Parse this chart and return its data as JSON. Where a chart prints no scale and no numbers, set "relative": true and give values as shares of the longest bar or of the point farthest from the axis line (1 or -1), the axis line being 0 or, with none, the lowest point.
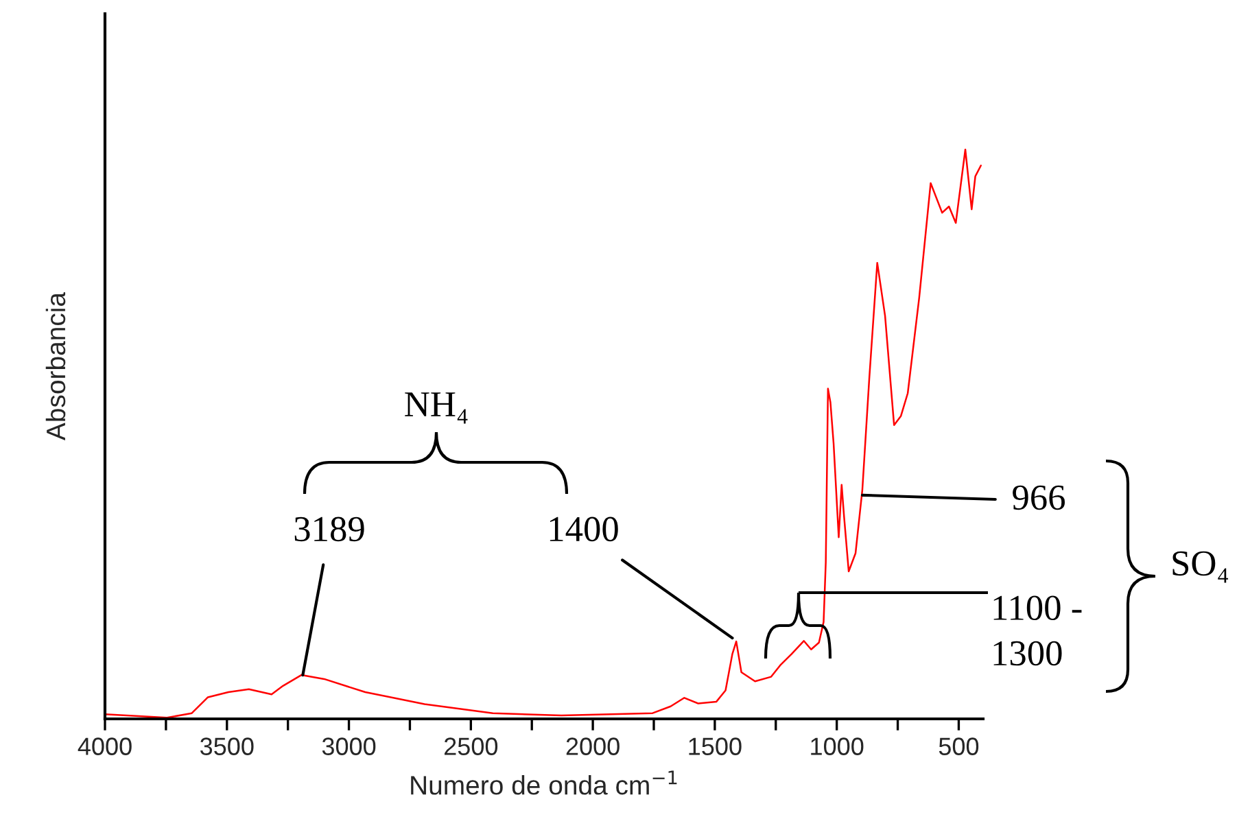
{
  "chart_data": {
    "type": "line",
    "relative": true,
    "xlabel": "Numero de onda cm$^{−1}$",
    "ylabel": "Absorbancia",
    "xlim": [
      4000,
      400
    ],
    "xticks": [
      4000,
      {
        "value": 3750,
        "label": null
      },
      3500,
      {
        "value": 3250,
        "label": null
      },
      3000,
      {
        "value": 2750,
        "label": null
      },
      2500,
      {
        "value": 2250,
        "label": null
      },
      2000,
      {
        "value": 1750,
        "label": null
      },
      1500,
      {
        "value": 1250,
        "label": null
      },
      1000,
      {
        "value": 750,
        "label": null
      },
      500
    ],
    "tick_labels": "x",
    "series": [
      {
        "color": "#ff0000",
        "x": [
          4000,
          3746,
          3644,
          3578,
          3494,
          3410,
          3317,
          3270,
          3195,
          3101,
          2933,
          2690,
          2410,
          2129,
          1755,
          1681,
          1625,
          1568,
          1494,
          1456,
          1428,
          1412,
          1391,
          1335,
          1269,
          1232,
          1185,
          1135,
          1105,
          1073,
          1054,
          1045,
          1036,
          1026,
          1013,
          992,
          980,
          970,
          951,
          923,
          895,
          867,
          834,
          802,
          765,
          737,
          709,
          662,
          615,
          568,
          540,
          512,
          473,
          447,
          432,
          409
        ],
        "values": [
          0.008,
          0.002,
          0.01,
          0.038,
          0.047,
          0.052,
          0.043,
          0.058,
          0.077,
          0.07,
          0.047,
          0.026,
          0.01,
          0.006,
          0.01,
          0.022,
          0.037,
          0.027,
          0.03,
          0.05,
          0.114,
          0.136,
          0.082,
          0.066,
          0.074,
          0.094,
          0.114,
          0.137,
          0.122,
          0.134,
          0.17,
          0.275,
          0.58,
          0.556,
          0.484,
          0.319,
          0.411,
          0.355,
          0.259,
          0.291,
          0.403,
          0.596,
          0.801,
          0.708,
          0.516,
          0.532,
          0.572,
          0.74,
          0.941,
          0.889,
          0.9,
          0.871,
          1.0,
          0.895,
          0.953,
          0.972
        ]
      }
    ],
    "annotations": [
      {
        "text": "3189",
        "x": 3189,
        "y": 0.077
      },
      {
        "text": "1400",
        "x": 1428,
        "y": 0.142
      },
      {
        "text": "966",
        "x": 895,
        "y": 0.393
      },
      "NH₄",
      "1100 -\n1300",
      "SO₄"
    ]
  }
}
